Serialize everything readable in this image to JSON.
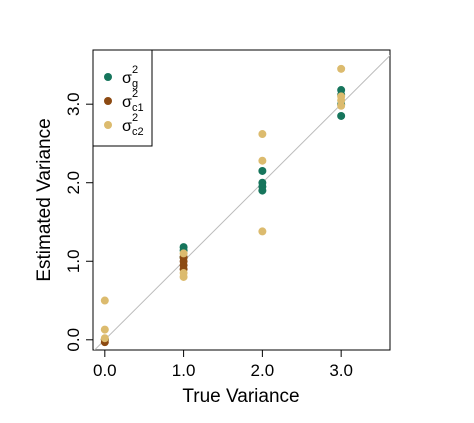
{
  "chart_data": {
    "type": "scatter",
    "xlabel": "True Variance",
    "ylabel": "Estimated Variance",
    "xlim": [
      -0.15,
      3.62
    ],
    "ylim": [
      -0.13,
      3.69
    ],
    "xticks": [
      {
        "value": 0,
        "label": "0.0"
      },
      {
        "value": 1,
        "label": "1.0"
      },
      {
        "value": 2,
        "label": "2.0"
      },
      {
        "value": 3,
        "label": "3.0"
      }
    ],
    "yticks": [
      {
        "value": 0,
        "label": "0.0"
      },
      {
        "value": 1,
        "label": "1.0"
      },
      {
        "value": 2,
        "label": "2.0"
      },
      {
        "value": 3,
        "label": "3.0"
      }
    ],
    "legend": "top-left",
    "reference_line": "identity",
    "series": [
      {
        "name": "σ",
        "sup": "2",
        "sub": "g",
        "color": "#16755c",
        "x": [
          0,
          1,
          1,
          1,
          2,
          2,
          2,
          2,
          3,
          3,
          3,
          3
        ],
        "values": [
          0.0,
          1.18,
          1.14,
          1.05,
          2.15,
          2.0,
          1.95,
          1.9,
          3.18,
          3.12,
          3.0,
          2.85
        ]
      },
      {
        "name": "σ",
        "sup": "2",
        "sub": "c1",
        "color": "#8c4a12",
        "x": [
          0,
          0,
          1,
          1,
          1,
          1
        ],
        "values": [
          -0.03,
          0.0,
          1.05,
          1.0,
          0.95,
          0.9
        ]
      },
      {
        "name": "σ",
        "sup": "2",
        "sub": "c2",
        "color": "#dcbb6e",
        "x": [
          0,
          0,
          0,
          1,
          1,
          1,
          2,
          2,
          2,
          3,
          3,
          3,
          3
        ],
        "values": [
          0.5,
          0.13,
          0.02,
          1.1,
          0.85,
          0.8,
          2.62,
          2.28,
          1.38,
          3.45,
          3.1,
          3.05,
          2.98
        ]
      }
    ]
  }
}
